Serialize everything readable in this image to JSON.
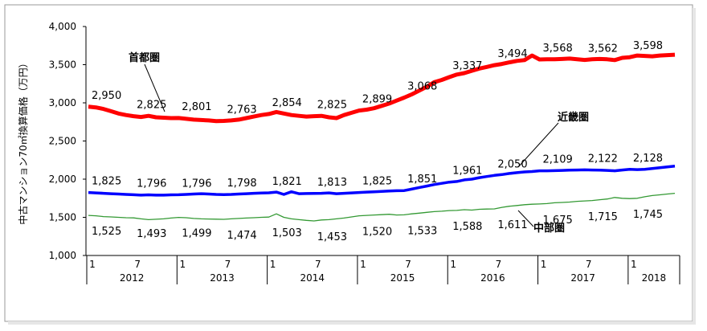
{
  "chart_data": {
    "type": "line",
    "ylabel": "中古マンション70㎡換算価格（万円）",
    "ylim": [
      1000,
      4000
    ],
    "y_ticks": [
      1000,
      1500,
      2000,
      2500,
      3000,
      3500,
      4000
    ],
    "y_tick_labels": [
      "1,000",
      "1,500",
      "2,000",
      "2,500",
      "3,000",
      "3,500",
      "4,000"
    ],
    "x_month_labels": [
      "1",
      "7",
      "1",
      "7",
      "1",
      "7",
      "1",
      "7",
      "1",
      "7",
      "1",
      "7",
      "1"
    ],
    "x_year_labels": [
      "2012",
      "2013",
      "2014",
      "2015",
      "2016",
      "2017",
      "2018"
    ],
    "grid": false,
    "series": [
      {
        "name": "首都圏",
        "color": "#ff0000",
        "label_points": [
          {
            "month_index": 0,
            "value": 2950,
            "label": "2,950"
          },
          {
            "month_index": 6,
            "value": 2825,
            "label": "2,825"
          },
          {
            "month_index": 12,
            "value": 2801,
            "label": "2,801"
          },
          {
            "month_index": 18,
            "value": 2763,
            "label": "2,763"
          },
          {
            "month_index": 24,
            "value": 2854,
            "label": "2,854"
          },
          {
            "month_index": 30,
            "value": 2825,
            "label": "2,825"
          },
          {
            "month_index": 36,
            "value": 2899,
            "label": "2,899"
          },
          {
            "month_index": 42,
            "value": 3068,
            "label": "3,068"
          },
          {
            "month_index": 48,
            "value": 3337,
            "label": "3,337"
          },
          {
            "month_index": 54,
            "value": 3494,
            "label": "3,494"
          },
          {
            "month_index": 60,
            "value": 3568,
            "label": "3,568"
          },
          {
            "month_index": 66,
            "value": 3562,
            "label": "3,562"
          },
          {
            "month_index": 72,
            "value": 3598,
            "label": "3,598"
          }
        ],
        "values": [
          2950,
          2940,
          2920,
          2890,
          2860,
          2840,
          2825,
          2815,
          2830,
          2810,
          2805,
          2800,
          2801,
          2790,
          2780,
          2775,
          2770,
          2760,
          2763,
          2770,
          2780,
          2800,
          2820,
          2840,
          2854,
          2880,
          2860,
          2840,
          2830,
          2820,
          2825,
          2830,
          2810,
          2800,
          2840,
          2870,
          2899,
          2910,
          2930,
          2960,
          2990,
          3030,
          3068,
          3110,
          3160,
          3210,
          3270,
          3300,
          3337,
          3370,
          3390,
          3420,
          3450,
          3470,
          3494,
          3510,
          3530,
          3550,
          3560,
          3620,
          3568,
          3570,
          3570,
          3575,
          3580,
          3570,
          3562,
          3570,
          3575,
          3570,
          3560,
          3590,
          3598,
          3620,
          3615,
          3610,
          3620,
          3625,
          3630
        ]
      },
      {
        "name": "近畿圏",
        "color": "#0000ff",
        "label_points": [
          {
            "month_index": 0,
            "value": 1825,
            "label": "1,825"
          },
          {
            "month_index": 6,
            "value": 1796,
            "label": "1,796"
          },
          {
            "month_index": 12,
            "value": 1796,
            "label": "1,796"
          },
          {
            "month_index": 18,
            "value": 1798,
            "label": "1,798"
          },
          {
            "month_index": 24,
            "value": 1821,
            "label": "1,821"
          },
          {
            "month_index": 30,
            "value": 1813,
            "label": "1,813"
          },
          {
            "month_index": 36,
            "value": 1825,
            "label": "1,825"
          },
          {
            "month_index": 42,
            "value": 1851,
            "label": "1,851"
          },
          {
            "month_index": 48,
            "value": 1961,
            "label": "1,961"
          },
          {
            "month_index": 54,
            "value": 2050,
            "label": "2,050"
          },
          {
            "month_index": 60,
            "value": 2109,
            "label": "2,109"
          },
          {
            "month_index": 66,
            "value": 2122,
            "label": "2,122"
          },
          {
            "month_index": 72,
            "value": 2128,
            "label": "2,128"
          }
        ],
        "values": [
          1825,
          1820,
          1815,
          1810,
          1805,
          1800,
          1796,
          1790,
          1795,
          1790,
          1790,
          1795,
          1796,
          1800,
          1805,
          1810,
          1805,
          1800,
          1798,
          1800,
          1805,
          1810,
          1815,
          1818,
          1821,
          1830,
          1800,
          1835,
          1810,
          1812,
          1813,
          1815,
          1820,
          1810,
          1815,
          1820,
          1825,
          1830,
          1835,
          1840,
          1845,
          1848,
          1851,
          1870,
          1890,
          1910,
          1930,
          1945,
          1961,
          1970,
          1990,
          2000,
          2020,
          2035,
          2050,
          2060,
          2075,
          2085,
          2095,
          2100,
          2109,
          2110,
          2112,
          2115,
          2118,
          2120,
          2122,
          2120,
          2118,
          2115,
          2110,
          2120,
          2128,
          2125,
          2130,
          2140,
          2150,
          2160,
          2170
        ]
      },
      {
        "name": "中部圏",
        "color": "#339933",
        "label_points": [
          {
            "month_index": 0,
            "value": 1525,
            "label": "1,525"
          },
          {
            "month_index": 6,
            "value": 1493,
            "label": "1,493"
          },
          {
            "month_index": 12,
            "value": 1499,
            "label": "1,499"
          },
          {
            "month_index": 18,
            "value": 1474,
            "label": "1,474"
          },
          {
            "month_index": 24,
            "value": 1503,
            "label": "1,503"
          },
          {
            "month_index": 30,
            "value": 1453,
            "label": "1,453"
          },
          {
            "month_index": 36,
            "value": 1520,
            "label": "1,520"
          },
          {
            "month_index": 42,
            "value": 1533,
            "label": "1,533"
          },
          {
            "month_index": 48,
            "value": 1588,
            "label": "1,588"
          },
          {
            "month_index": 54,
            "value": 1611,
            "label": "1,611"
          },
          {
            "month_index": 60,
            "value": 1675,
            "label": "1,675"
          },
          {
            "month_index": 66,
            "value": 1715,
            "label": "1,715"
          },
          {
            "month_index": 72,
            "value": 1745,
            "label": "1,745"
          }
        ],
        "values": [
          1525,
          1520,
          1510,
          1505,
          1500,
          1495,
          1493,
          1480,
          1470,
          1475,
          1480,
          1490,
          1499,
          1495,
          1485,
          1480,
          1478,
          1476,
          1474,
          1480,
          1485,
          1490,
          1495,
          1500,
          1503,
          1545,
          1500,
          1480,
          1470,
          1460,
          1453,
          1465,
          1470,
          1480,
          1490,
          1505,
          1520,
          1525,
          1530,
          1535,
          1540,
          1530,
          1533,
          1545,
          1555,
          1565,
          1575,
          1580,
          1588,
          1590,
          1600,
          1595,
          1605,
          1608,
          1611,
          1630,
          1645,
          1655,
          1665,
          1672,
          1675,
          1680,
          1690,
          1695,
          1700,
          1710,
          1715,
          1720,
          1730,
          1740,
          1760,
          1750,
          1745,
          1750,
          1770,
          1785,
          1795,
          1805,
          1815
        ]
      }
    ]
  }
}
